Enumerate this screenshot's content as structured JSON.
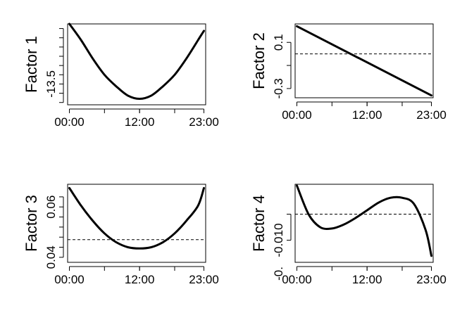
{
  "chart_data": [
    {
      "type": "line",
      "title": "",
      "xlabel": "",
      "ylabel": "Factor 1",
      "x": [
        0,
        2,
        4,
        6,
        8,
        10,
        12,
        14,
        16,
        18,
        20,
        22,
        23
      ],
      "x_tick_values": [
        0,
        12,
        23
      ],
      "x_tick_labels": [
        "00:00",
        "12:00",
        "23:00"
      ],
      "xlim": [
        -0.3,
        23.3
      ],
      "ylim": [
        -13.95,
        -12.2
      ],
      "y_ticks": [
        -13.9,
        -13.7,
        -13.5,
        -13.3,
        -13.1,
        -12.9,
        -12.7,
        -12.5,
        -12.3
      ],
      "y_tick_labels": [
        "",
        "",
        "",
        "",
        "",
        "",
        "",
        "",
        ""
      ],
      "y_label_text": "-13.5",
      "y_label_at": -13.5,
      "y_unlabeled_ticks": [
        -13.25,
        -12.8
      ],
      "series": [
        {
          "values": [
            -12.2,
            -12.55,
            -12.95,
            -13.3,
            -13.55,
            -13.75,
            -13.82,
            -13.75,
            -13.55,
            -13.3,
            -12.95,
            -12.55,
            -12.35
          ]
        }
      ],
      "reference_line": null
    },
    {
      "type": "line",
      "title": "",
      "xlabel": "",
      "ylabel": "Factor 2",
      "x": [
        0,
        23
      ],
      "x_tick_values": [
        0,
        12,
        23
      ],
      "x_tick_labels": [
        "00:00",
        "12:00",
        "23:00"
      ],
      "xlim": [
        -0.3,
        23.3
      ],
      "ylim": [
        -0.38,
        0.26
      ],
      "y_tick_values": [
        -0.3,
        -0.1,
        0.1
      ],
      "y_tick_labels": [
        "-0.3",
        "",
        "0.1"
      ],
      "series": [
        {
          "values": [
            0.24,
            -0.36
          ]
        }
      ],
      "reference_line": 0
    },
    {
      "type": "line",
      "title": "",
      "xlabel": "",
      "ylabel": "Factor 3",
      "x": [
        0,
        2,
        4,
        6,
        8,
        10,
        12,
        14,
        16,
        18,
        20,
        22,
        23
      ],
      "x_tick_values": [
        0,
        12,
        23
      ],
      "x_tick_labels": [
        "00:00",
        "12:00",
        "23:00"
      ],
      "xlim": [
        -0.3,
        23.3
      ],
      "ylim": [
        0.038,
        0.069
      ],
      "y_tick_values": [
        0.04,
        0.044,
        0.048,
        0.052,
        0.056,
        0.06,
        0.064
      ],
      "y_tick_labels": [
        "0.04",
        "",
        "",
        "",
        "",
        "0.06",
        ""
      ],
      "series": [
        {
          "values": [
            0.0675,
            0.0605,
            0.0545,
            0.0495,
            0.046,
            0.044,
            0.0435,
            0.044,
            0.046,
            0.0495,
            0.0545,
            0.0605,
            0.0675
          ]
        }
      ],
      "reference_line": 0.047
    },
    {
      "type": "line",
      "title": "",
      "xlabel": "",
      "ylabel": "Factor 4",
      "x": [
        0,
        2,
        4,
        6,
        8,
        10,
        12,
        14,
        16,
        18,
        20,
        22,
        23
      ],
      "x_tick_values": [
        0,
        12,
        23
      ],
      "x_tick_labels": [
        "00:00",
        "12:00",
        "23:00"
      ],
      "xlim": [
        -0.3,
        23.3
      ],
      "ylim": [
        -0.0185,
        0.0115
      ],
      "y_tick_values": [
        -0.01,
        0.0
      ],
      "y_tick_labels": [
        "-0.010",
        ""
      ],
      "series": [
        {
          "values": [
            0.011,
            0.0,
            -0.005,
            -0.0055,
            -0.004,
            -0.0015,
            0.0015,
            0.0045,
            0.0063,
            0.0063,
            0.004,
            -0.006,
            -0.016
          ]
        }
      ],
      "reference_line": 0.0,
      "y_lower_label": "-0."
    }
  ]
}
